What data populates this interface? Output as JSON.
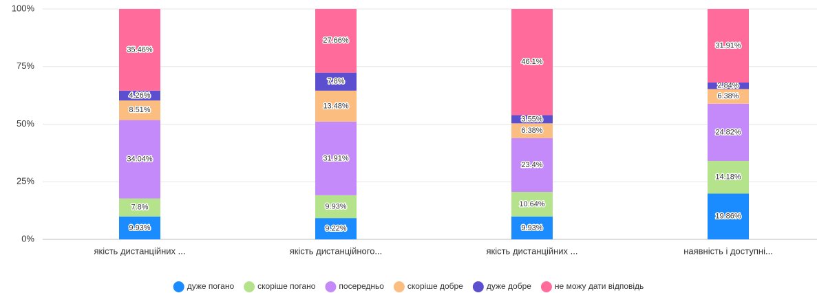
{
  "chart_data": {
    "type": "stacked_bar",
    "categories": [
      "якість дистанційних ...",
      "якість дистанційного...",
      "якість дистанційних ...",
      "наявність і доступні..."
    ],
    "series": [
      {
        "name": "дуже погано",
        "color": "#1a8cff",
        "values": [
          9.93,
          9.22,
          9.93,
          19.86
        ],
        "value_labels": [
          "9.93%",
          "9.22%",
          "9.93%",
          "19.86%"
        ]
      },
      {
        "name": "скоріше погано",
        "color": "#b5e38c",
        "values": [
          7.8,
          9.93,
          10.64,
          14.18
        ],
        "value_labels": [
          "7.8%",
          "9.93%",
          "10.64%",
          "14.18%"
        ]
      },
      {
        "name": "посередньо",
        "color": "#c58af9",
        "values": [
          34.04,
          31.91,
          23.4,
          24.82
        ],
        "value_labels": [
          "34.04%",
          "31.91%",
          "23.4%",
          "24.82%"
        ]
      },
      {
        "name": "скоріше добре",
        "color": "#fbbd80",
        "values": [
          8.51,
          13.48,
          6.38,
          6.38
        ],
        "value_labels": [
          "8.51%",
          "13.48%",
          "6.38%",
          "6.38%"
        ]
      },
      {
        "name": "дуже добре",
        "color": "#5b4fcf",
        "values": [
          4.26,
          7.8,
          3.55,
          2.84
        ],
        "value_labels": [
          "4.26%",
          "7.8%",
          "3.55%",
          "2.84%"
        ]
      },
      {
        "name": "не можу дати відповідь",
        "color": "#ff6b9b",
        "values": [
          35.46,
          27.66,
          46.1,
          31.91
        ],
        "value_labels": [
          "35.46%",
          "27.66%",
          "46.1%",
          "31.91%"
        ]
      }
    ],
    "ylim": [
      0,
      100
    ],
    "yticks": [
      {
        "value": 0,
        "label": "0%"
      },
      {
        "value": 25,
        "label": "25%"
      },
      {
        "value": 50,
        "label": "50%"
      },
      {
        "value": 75,
        "label": "75%"
      },
      {
        "value": 100,
        "label": "100%"
      }
    ],
    "grid": true,
    "legend": "bottom"
  }
}
